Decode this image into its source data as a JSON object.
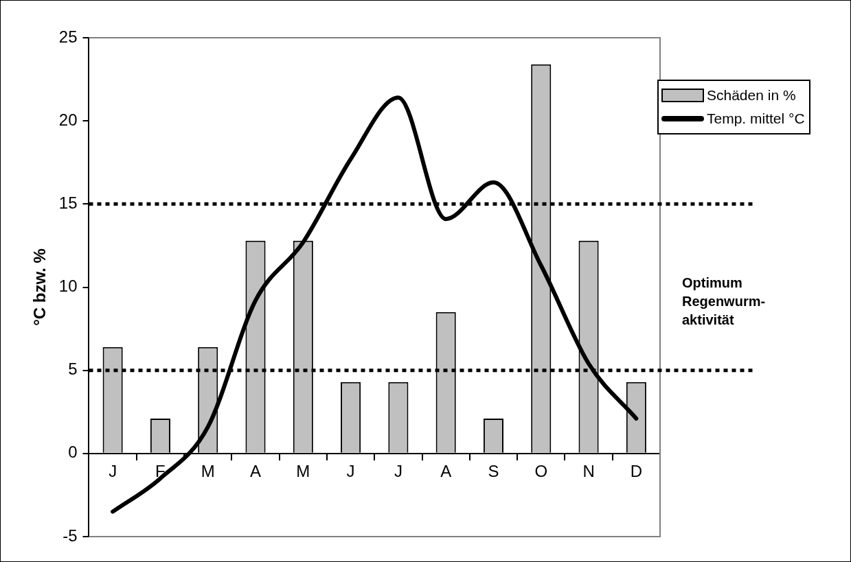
{
  "chart_data": {
    "type": "bar",
    "ylabel": "°C bzw. %",
    "categories": [
      "J",
      "F",
      "M",
      "A",
      "M",
      "J",
      "J",
      "A",
      "S",
      "O",
      "N",
      "D"
    ],
    "series": [
      {
        "name": "Schäden in %",
        "color": "#c0c0c0",
        "values": [
          6.4,
          2.1,
          6.4,
          12.8,
          12.8,
          4.3,
          4.3,
          8.5,
          2.1,
          23.4,
          12.8,
          4.3
        ]
      },
      {
        "name": "Temp. mittel °C",
        "type": "line",
        "color": "#000000",
        "values": [
          -3.5,
          -1.5,
          1.6,
          9.2,
          12.7,
          17.7,
          21.4,
          14.1,
          16.3,
          11.3,
          5.4,
          2.1
        ]
      }
    ],
    "ylim": [
      -5,
      25
    ],
    "yticks": [
      -5,
      0,
      5,
      10,
      15,
      20,
      25
    ],
    "grid": false,
    "legend": "right",
    "marker": "none",
    "line_style": "solid",
    "ref_lines": [
      {
        "axis": "y",
        "value": 5,
        "color": "#000000",
        "line_style": "dotted"
      },
      {
        "axis": "y",
        "value": 15,
        "color": "#000000",
        "line_style": "dotted"
      }
    ],
    "annotations": [
      "Optimum Regenwurm-aktivität"
    ]
  }
}
